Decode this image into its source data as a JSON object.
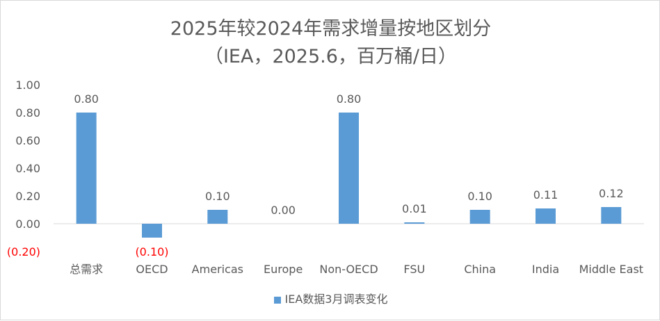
{
  "chart_data": {
    "type": "bar",
    "title": "2025年较2024年需求增量按地区划分",
    "subtitle": "（IEA，2025.6，百万桶/日）",
    "categories": [
      "总需求",
      "OECD",
      "Americas",
      "Europe",
      "Non-OECD",
      "FSU",
      "China",
      "India",
      "Middle East"
    ],
    "series": [
      {
        "name": "IEA数据3月调表变化",
        "values": [
          0.8,
          -0.1,
          0.1,
          0.0,
          0.8,
          0.01,
          0.1,
          0.11,
          0.12
        ]
      }
    ],
    "data_labels": [
      "0.80",
      "(0.10)",
      "0.10",
      "0.00",
      "0.80",
      "0.01",
      "0.10",
      "0.11",
      "0.12"
    ],
    "yticks": [
      "(0.20)",
      "0.00",
      "0.20",
      "0.40",
      "0.60",
      "0.80",
      "1.00"
    ],
    "ylim": [
      -0.2,
      1.0
    ],
    "grid": false,
    "legend_position": "bottom",
    "colors": {
      "bar": "#5b9bd5",
      "negative_label": "#ff0000",
      "text": "#595959"
    }
  }
}
